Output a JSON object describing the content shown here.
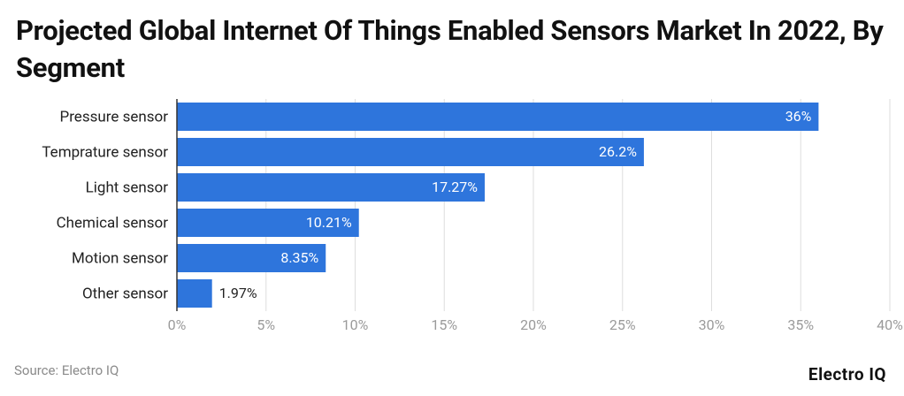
{
  "chart_data": {
    "type": "bar",
    "orientation": "horizontal",
    "title": "Projected Global Internet Of Things Enabled Sensors Market In 2022, By Segment",
    "categories": [
      "Pressure sensor",
      "Temprature sensor",
      "Light sensor",
      "Chemical sensor",
      "Motion sensor",
      "Other sensor"
    ],
    "values": [
      36,
      26.2,
      17.27,
      10.21,
      8.35,
      1.97
    ],
    "value_labels": [
      "36%",
      "26.2%",
      "17.27%",
      "10.21%",
      "8.35%",
      "1.97%"
    ],
    "color": "#2e75dc",
    "xlim": [
      0,
      40
    ],
    "xticks": [
      {
        "value": 0,
        "label": "0%"
      },
      {
        "value": 5,
        "label": "5%"
      },
      {
        "value": 10,
        "label": "10%"
      },
      {
        "value": 15,
        "label": "15%"
      },
      {
        "value": 20,
        "label": "20%"
      },
      {
        "value": 25,
        "label": "25%"
      },
      {
        "value": 30,
        "label": "30%"
      },
      {
        "value": 35,
        "label": "35%"
      },
      {
        "value": 40,
        "label": "40%"
      }
    ],
    "grid": true,
    "source": "Source: Electro IQ",
    "brand": "Electro IQ"
  }
}
